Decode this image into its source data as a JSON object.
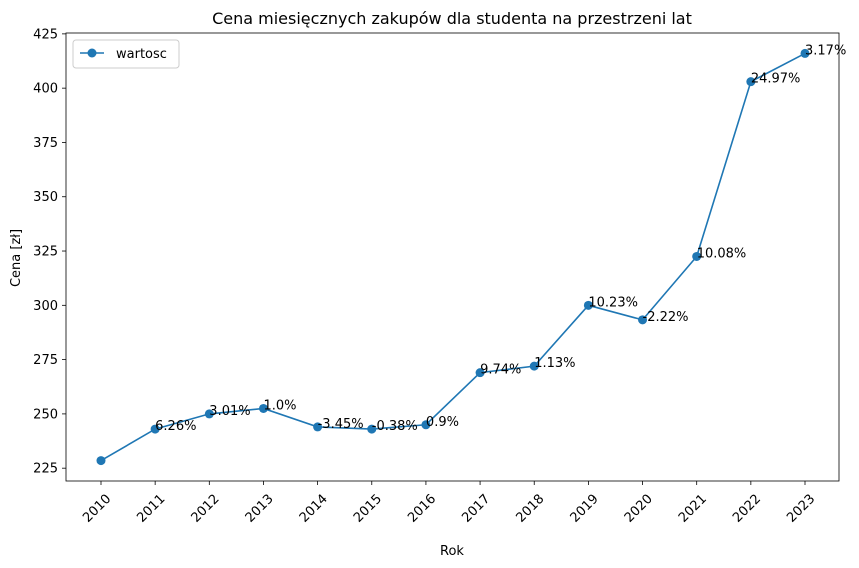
{
  "chart_data": {
    "type": "line",
    "title": "Cena miesięcznych zakupów dla studenta na przestrzeni lat",
    "xlabel": "Rok",
    "ylabel": "Cena [zł]",
    "x": [
      "2010",
      "2011",
      "2012",
      "2013",
      "2014",
      "2015",
      "2016",
      "2017",
      "2018",
      "2019",
      "2020",
      "2021",
      "2022",
      "2023"
    ],
    "series": [
      {
        "name": "wartosc",
        "values": [
          228.5,
          243,
          250,
          252.5,
          244,
          243,
          245,
          269,
          272,
          300,
          293.3,
          322.5,
          403,
          416
        ],
        "labels": [
          "",
          "6.26%",
          "3.01%",
          "1.0%",
          "-3.45%",
          "-0.38%",
          "0.9%",
          "9.74%",
          "1.13%",
          "10.23%",
          "-2.22%",
          "10.08%",
          "24.97%",
          "3.17%"
        ]
      }
    ],
    "yticks": [
      225,
      250,
      275,
      300,
      325,
      350,
      375,
      400,
      425
    ],
    "ylim": [
      219.1,
      425.4
    ],
    "grid": false,
    "legend": "top-left",
    "colors": {
      "line": "#1f77b4",
      "axes": "#000000"
    }
  }
}
